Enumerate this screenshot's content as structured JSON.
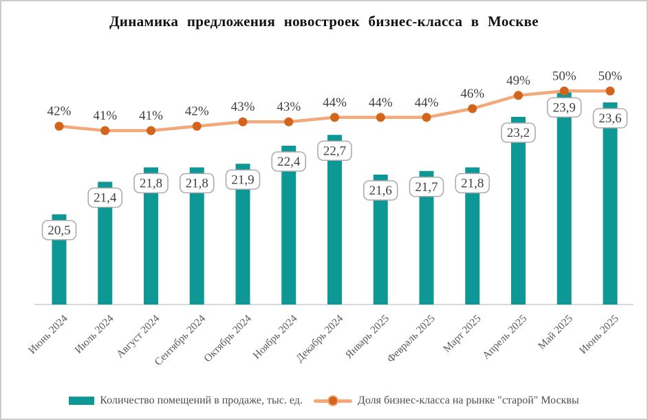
{
  "colors": {
    "bar": "#0D9795",
    "line": "#F2A878",
    "marker": "#D3641C",
    "value_text": "#404040",
    "axis_text": "#595959",
    "box_border": "#ABABAB",
    "box_fill": "#FFFFFF",
    "axis_line": "#D9D9D9",
    "legend_text": "#4D4D4D",
    "title_text": "#111111",
    "frame_border": "#CBCBCB"
  },
  "legend": {
    "items": [
      {
        "marker": "bar-swatch",
        "label": "Количество помещений в продаже, тыс. ед."
      },
      {
        "marker": "line-dot-swatch",
        "label": "Доля бизнес-класса на рынке \"старой\" Москвы"
      }
    ]
  },
  "chart_data": {
    "type": "bar",
    "title": "Динамика предложения новостроек бизнес-класса в Москве",
    "categories": [
      "Июнь 2024",
      "Июль 2024",
      "Август 2024",
      "Сентябрь 2024",
      "Октябрь 2024",
      "Ноябрь 2024",
      "Декабрь 2024",
      "Январь 2025",
      "Февраль 2025",
      "Март 2025",
      "Апрель 2025",
      "Май 2025",
      "Июнь 2025"
    ],
    "series": [
      {
        "name": "Количество помещений в продаже, тыс. ед.",
        "type": "bar",
        "values": [
          20.5,
          21.4,
          21.8,
          21.8,
          21.9,
          22.4,
          22.7,
          21.6,
          21.7,
          21.8,
          23.2,
          23.9,
          23.6
        ],
        "labels": [
          "20,5",
          "21,4",
          "21,8",
          "21,8",
          "21,9",
          "22,4",
          "22,7",
          "21,6",
          "21,7",
          "21,8",
          "23,2",
          "23,9",
          "23,6"
        ]
      },
      {
        "name": "Доля бизнес-класса на рынке \"старой\" Москвы",
        "type": "line",
        "values": [
          42,
          41,
          41,
          42,
          43,
          43,
          44,
          44,
          44,
          46,
          49,
          50,
          50
        ],
        "labels": [
          "42%",
          "41%",
          "41%",
          "42%",
          "43%",
          "43%",
          "44%",
          "44%",
          "44%",
          "46%",
          "49%",
          "50%",
          "50%"
        ]
      }
    ],
    "bar_axis": {
      "min": 18
    },
    "line_axis": {
      "visible_min": 41,
      "visible_max": 50
    },
    "grid": false,
    "data_labels": true,
    "legend_position": "bottom",
    "x_tick_rotation_deg": 45
  }
}
